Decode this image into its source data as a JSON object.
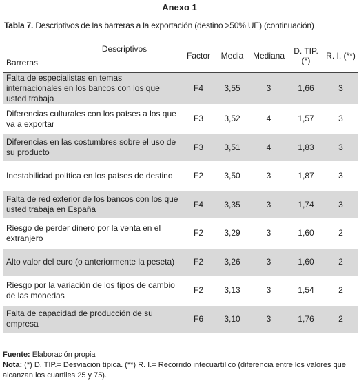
{
  "header": {
    "title": "Anexo 1"
  },
  "caption": {
    "label": "Tabla 7.",
    "text": "Descriptivos de las barreras a la exportación (destino >50% UE) (continuación)"
  },
  "table": {
    "corner_top": "Descriptivos",
    "corner_bottom": "Barreras",
    "columns": [
      "Factor",
      "Media",
      "Mediana",
      "D. TIP. (*)",
      "R. I. (**)"
    ],
    "rows": [
      [
        "Falta de especialistas en temas internacionales en los bancos con los que usted trabaja",
        "F4",
        "3,55",
        "3",
        "1,66",
        "3"
      ],
      [
        "Diferencias culturales con los países a los que va a exportar",
        "F3",
        "3,52",
        "4",
        "1,57",
        "3"
      ],
      [
        "Diferencias en las costumbres sobre el uso de su producto",
        "F3",
        "3,51",
        "4",
        "1,83",
        "3"
      ],
      [
        "Inestabilidad política en los países de destino",
        "F2",
        "3,50",
        "3",
        "1,87",
        "3"
      ],
      [
        "Falta de red exterior de los bancos con los que usted trabaja en España",
        "F4",
        "3,35",
        "3",
        "1,74",
        "3"
      ],
      [
        "Riesgo de perder dinero por la venta en el extranjero",
        "F2",
        "3,29",
        "3",
        "1,60",
        "2"
      ],
      [
        "Alto valor del euro (o anteriormente la peseta)",
        "F2",
        "3,26",
        "3",
        "1,60",
        "2"
      ],
      [
        "Riesgo por la variación de los tipos de cambio de las monedas",
        "F2",
        "3,13",
        "3",
        "1,54",
        "2"
      ],
      [
        "Falta de capacidad de producción de su empresa",
        "F6",
        "3,10",
        "3",
        "1,76",
        "2"
      ]
    ]
  },
  "footer": {
    "source_label": "Fuente:",
    "source_text": "Elaboración propia",
    "note_label": "Nota:",
    "note_text": "(*) D. TIP.= Desviación típica. (**) R. I.= Recorrido intecuartílico (diferencia entre los valores que alcanzan los cuartiles 25 y 75)."
  }
}
